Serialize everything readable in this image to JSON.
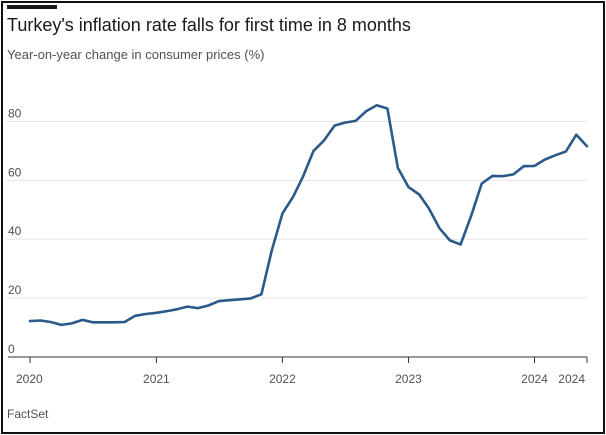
{
  "header": {
    "title": "Turkey's inflation rate falls for first time in 8 months",
    "subtitle": "Year-on-year change in consumer prices (%)"
  },
  "footer": {
    "source": "FactSet"
  },
  "colors": {
    "line": "#2a5a8a",
    "grid": "#e6e6e6",
    "axis": "#333333"
  },
  "chart_data": {
    "type": "line",
    "title": "Turkey's inflation rate falls for first time in 8 months",
    "subtitle": "Year-on-year change in consumer prices (%)",
    "xlabel": "",
    "ylabel": "",
    "ylim": [
      0,
      90
    ],
    "yticks": [
      0,
      20,
      40,
      60,
      80
    ],
    "xticks": [
      {
        "date": "2020-01",
        "label": "2020"
      },
      {
        "date": "2021-01",
        "label": "2021"
      },
      {
        "date": "2022-01",
        "label": "2022"
      },
      {
        "date": "2023-01",
        "label": "2023"
      },
      {
        "date": "2024-01",
        "label": "2024"
      },
      {
        "date": "2024-06",
        "label": "2024"
      }
    ],
    "grid": true,
    "legend": "none",
    "series": [
      {
        "x": [
          "2020-01",
          "2020-02",
          "2020-03",
          "2020-04",
          "2020-05",
          "2020-06",
          "2020-07",
          "2020-08",
          "2020-09",
          "2020-10",
          "2020-11",
          "2020-12",
          "2021-01",
          "2021-02",
          "2021-03",
          "2021-04",
          "2021-05",
          "2021-06",
          "2021-07",
          "2021-08",
          "2021-09",
          "2021-10",
          "2021-11",
          "2021-12",
          "2022-01",
          "2022-02",
          "2022-03",
          "2022-04",
          "2022-05",
          "2022-06",
          "2022-07",
          "2022-08",
          "2022-09",
          "2022-10",
          "2022-11",
          "2022-12",
          "2023-01",
          "2023-02",
          "2023-03",
          "2023-04",
          "2023-05",
          "2023-06",
          "2023-07",
          "2023-08",
          "2023-09",
          "2023-10",
          "2023-11",
          "2023-12",
          "2024-01",
          "2024-02",
          "2024-03",
          "2024-04",
          "2024-05",
          "2024-06"
        ],
        "values": [
          12.2,
          12.4,
          11.9,
          10.9,
          11.4,
          12.6,
          11.8,
          11.8,
          11.8,
          11.9,
          14.0,
          14.6,
          15.0,
          15.6,
          16.2,
          17.1,
          16.6,
          17.5,
          19.0,
          19.3,
          19.6,
          19.9,
          21.3,
          36.1,
          48.7,
          54.4,
          61.1,
          70.0,
          73.5,
          78.6,
          79.6,
          80.2,
          83.5,
          85.5,
          84.4,
          64.3,
          57.7,
          55.2,
          50.5,
          43.7,
          39.6,
          38.2,
          47.8,
          58.9,
          61.5,
          61.4,
          62.0,
          64.8,
          64.9,
          67.1,
          68.5,
          69.8,
          75.5,
          71.6
        ]
      }
    ]
  }
}
